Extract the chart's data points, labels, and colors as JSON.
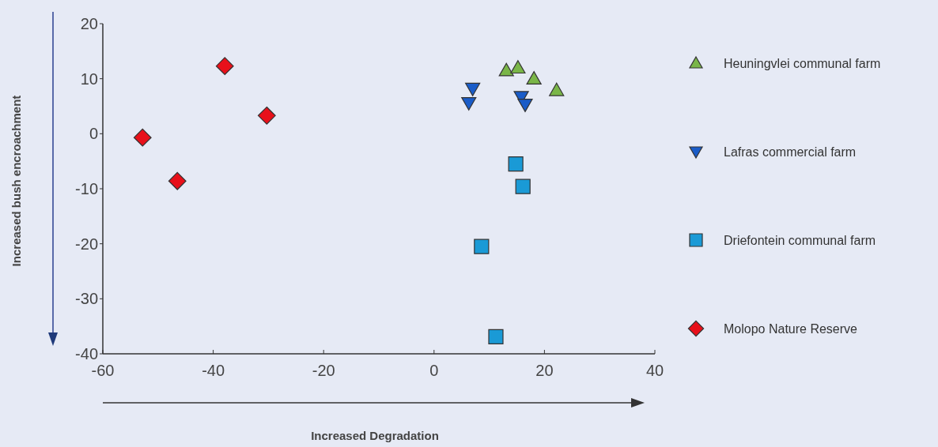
{
  "chart_data": {
    "type": "scatter",
    "xlabel": "Increased Degradation",
    "ylabel": "Increased bush encroachment",
    "xlim": [
      -60,
      40
    ],
    "ylim": [
      -40,
      20
    ],
    "xticks": [
      -60,
      -40,
      -20,
      0,
      20,
      40
    ],
    "yticks": [
      -40,
      -30,
      -20,
      -10,
      0,
      10,
      20
    ],
    "grid": false,
    "legend": "right",
    "series": [
      {
        "name": "Heuningvlei communal farm",
        "color": "#7ab648",
        "marker": "triangle",
        "x": [
          13.1,
          15.2,
          18.1,
          22.2
        ],
        "values": [
          11.5,
          12.0,
          10.0,
          7.9
        ]
      },
      {
        "name": "Lafras commercial farm",
        "color": "#1a5cc8",
        "marker": "triangle-down",
        "x": [
          7.0,
          6.3,
          15.8,
          16.5
        ],
        "values": [
          8.2,
          5.6,
          6.7,
          5.3
        ]
      },
      {
        "name": "Driefontein communal farm",
        "color": "#1a9ad6",
        "marker": "square",
        "x": [
          14.8,
          16.1,
          8.6,
          11.2
        ],
        "values": [
          -5.5,
          -9.6,
          -20.5,
          -36.9
        ]
      },
      {
        "name": "Molopo Nature Reserve",
        "color": "#e8101a",
        "marker": "diamond",
        "x": [
          -52.8,
          -46.5,
          -37.9,
          -30.3
        ],
        "values": [
          -0.7,
          -8.6,
          12.3,
          3.3
        ]
      }
    ]
  }
}
